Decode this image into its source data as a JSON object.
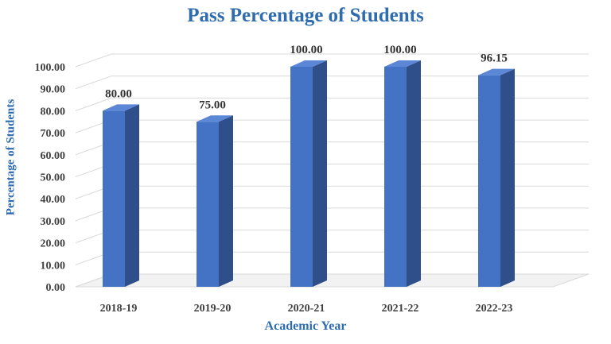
{
  "chart_data": {
    "type": "bar",
    "title": "Pass Percentage of Students",
    "xlabel": "Academic Year",
    "ylabel": "Percentage of Students",
    "categories": [
      "2018-19",
      "2019-20",
      "2020-21",
      "2021-22",
      "2022-23"
    ],
    "values": [
      80.0,
      75.0,
      100.0,
      100.0,
      96.15
    ],
    "value_labels": [
      "80.00",
      "75.00",
      "100.00",
      "100.00",
      "96.15"
    ],
    "ylim": [
      0,
      100
    ],
    "yticks": [
      "0.00",
      "10.00",
      "20.00",
      "30.00",
      "40.00",
      "50.00",
      "60.00",
      "70.00",
      "80.00",
      "90.00",
      "100.00"
    ],
    "grid": true,
    "style": "3d-column",
    "colors": {
      "bar_front": "#4472C4",
      "bar_side": "#2F4F8A",
      "bar_top": "#5B87D6",
      "title": "#2E6BAF",
      "grid": "#D9D9D9"
    }
  }
}
